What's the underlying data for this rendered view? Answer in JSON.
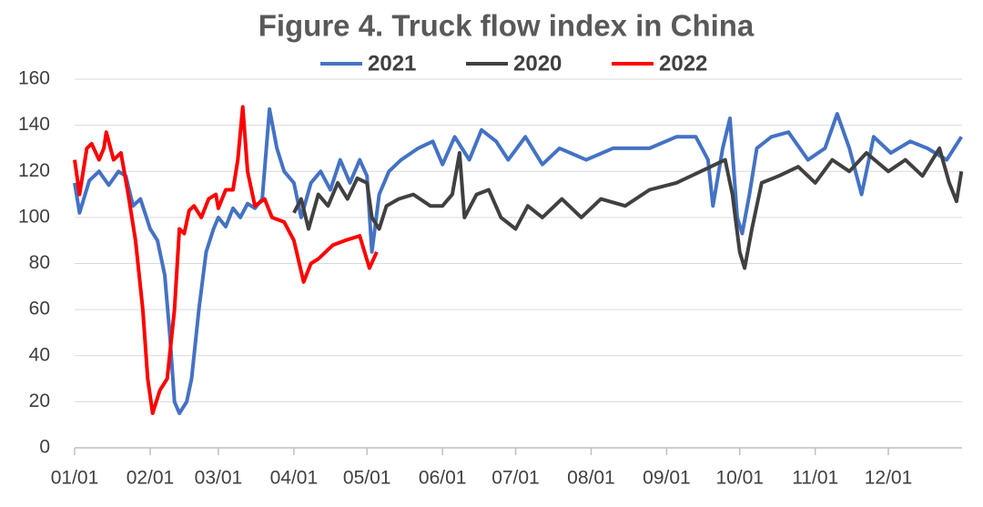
{
  "chart_data": {
    "type": "line",
    "title": "Figure 4. Truck flow index in China",
    "ylim": [
      0,
      160
    ],
    "yticks": [
      0,
      20,
      40,
      60,
      80,
      100,
      120,
      140,
      160
    ],
    "grid": true,
    "xticks": [
      "01/01",
      "02/01",
      "03/01",
      "04/01",
      "05/01",
      "06/01",
      "07/01",
      "08/01",
      "09/01",
      "10/01",
      "11/01",
      "12/01"
    ],
    "series": [
      {
        "name": "2021",
        "color": "#4472c4",
        "x": [
          "01/01",
          "01/03",
          "01/07",
          "01/11",
          "01/15",
          "01/19",
          "01/22",
          "01/25",
          "01/28",
          "02/01",
          "02/04",
          "02/07",
          "02/09",
          "02/11",
          "02/13",
          "02/16",
          "02/18",
          "02/21",
          "02/24",
          "02/27",
          "03/01",
          "03/04",
          "03/07",
          "03/10",
          "03/13",
          "03/16",
          "03/19",
          "03/22",
          "03/25",
          "03/28",
          "04/01",
          "04/04",
          "04/08",
          "04/12",
          "04/16",
          "04/20",
          "04/24",
          "04/28",
          "05/01",
          "05/03",
          "05/06",
          "05/10",
          "05/15",
          "05/22",
          "05/28",
          "06/01",
          "06/06",
          "06/12",
          "06/17",
          "06/23",
          "06/28",
          "07/05",
          "07/12",
          "07/19",
          "07/30",
          "08/10",
          "08/25",
          "09/05",
          "09/13",
          "09/18",
          "09/20",
          "09/24",
          "09/27",
          "09/30",
          "10/02",
          "10/05",
          "10/08",
          "10/14",
          "10/21",
          "10/29",
          "11/05",
          "11/10",
          "11/15",
          "11/20",
          "11/25",
          "12/02",
          "12/10",
          "12/17",
          "12/25",
          "12/31"
        ],
        "values": [
          115,
          102,
          116,
          120,
          114,
          120,
          118,
          105,
          108,
          95,
          90,
          75,
          50,
          20,
          15,
          20,
          30,
          60,
          85,
          95,
          100,
          96,
          104,
          100,
          106,
          104,
          108,
          147,
          130,
          120,
          115,
          100,
          115,
          120,
          112,
          125,
          115,
          125,
          118,
          85,
          110,
          120,
          125,
          130,
          133,
          123,
          135,
          125,
          138,
          133,
          125,
          135,
          123,
          130,
          125,
          130,
          130,
          135,
          135,
          125,
          105,
          130,
          143,
          100,
          93,
          110,
          130,
          135,
          137,
          125,
          130,
          145,
          130,
          110,
          135,
          128,
          133,
          130,
          125,
          135
        ]
      },
      {
        "name": "2020",
        "color": "#404040",
        "x": [
          "04/01",
          "04/04",
          "04/07",
          "04/11",
          "04/15",
          "04/19",
          "04/23",
          "04/27",
          "05/01",
          "05/03",
          "05/06",
          "05/09",
          "05/14",
          "05/20",
          "05/27",
          "06/01",
          "06/05",
          "06/08",
          "06/10",
          "06/15",
          "06/20",
          "06/25",
          "07/01",
          "07/06",
          "07/12",
          "07/20",
          "07/28",
          "08/05",
          "08/15",
          "08/25",
          "09/05",
          "09/15",
          "09/25",
          "09/28",
          "10/01",
          "10/03",
          "10/06",
          "10/10",
          "10/17",
          "10/25",
          "11/01",
          "11/08",
          "11/15",
          "11/22",
          "12/01",
          "12/08",
          "12/15",
          "12/22",
          "12/26",
          "12/29",
          "12/31"
        ],
        "values": [
          102,
          108,
          95,
          110,
          105,
          115,
          108,
          117,
          115,
          100,
          95,
          105,
          108,
          110,
          105,
          105,
          110,
          128,
          100,
          110,
          112,
          100,
          95,
          105,
          100,
          108,
          100,
          108,
          105,
          112,
          115,
          120,
          125,
          110,
          85,
          78,
          95,
          115,
          118,
          122,
          115,
          125,
          120,
          128,
          120,
          125,
          118,
          130,
          115,
          107,
          120
        ]
      },
      {
        "name": "2022",
        "color": "#ff0000",
        "x": [
          "01/01",
          "01/03",
          "01/06",
          "01/08",
          "01/11",
          "01/13",
          "01/14",
          "01/17",
          "01/20",
          "01/23",
          "01/26",
          "01/29",
          "01/31",
          "02/02",
          "02/05",
          "02/08",
          "02/11",
          "02/13",
          "02/15",
          "02/17",
          "02/19",
          "02/22",
          "02/25",
          "02/28",
          "03/01",
          "03/04",
          "03/07",
          "03/09",
          "03/11",
          "03/13",
          "03/16",
          "03/20",
          "03/23",
          "03/28",
          "04/01",
          "04/05",
          "04/08",
          "04/11",
          "04/17",
          "04/22",
          "04/28",
          "05/02",
          "05/05"
        ],
        "values": [
          125,
          110,
          130,
          132,
          125,
          130,
          137,
          125,
          128,
          110,
          90,
          60,
          30,
          15,
          25,
          30,
          60,
          95,
          93,
          103,
          105,
          100,
          108,
          110,
          104,
          112,
          112,
          125,
          148,
          120,
          105,
          108,
          100,
          98,
          90,
          72,
          80,
          82,
          88,
          90,
          92,
          78,
          85
        ]
      }
    ]
  }
}
